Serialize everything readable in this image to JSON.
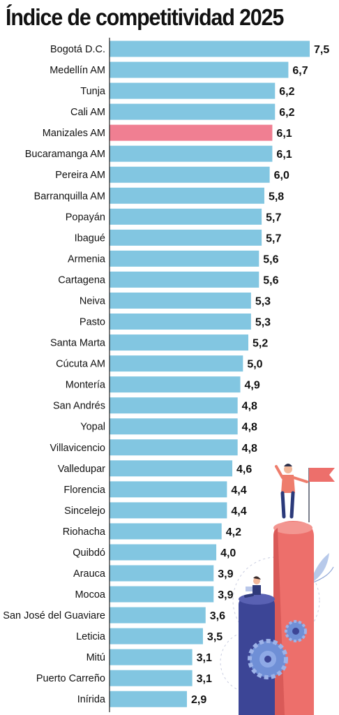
{
  "colors": {
    "bar": "#82c6e1",
    "highlight": "#f07f92",
    "axis": "#222222",
    "text": "#111111"
  },
  "chart_data": {
    "type": "bar",
    "orientation": "horizontal",
    "title": "Índice de competitividad 2025",
    "highlight_category": "Manizales AM",
    "categories": [
      "Bogotá D.C.",
      "Medellín AM",
      "Tunja",
      "Cali AM",
      "Manizales AM",
      "Bucaramanga AM",
      "Pereira AM",
      "Barranquilla AM",
      "Popayán",
      "Ibagué",
      "Armenia",
      "Cartagena",
      "Neiva",
      "Pasto",
      "Santa Marta",
      "Cúcuta AM",
      "Montería",
      "San Andrés",
      "Yopal",
      "Villavicencio",
      "Valledupar",
      "Florencia",
      "Sincelejo",
      "Riohacha",
      "Quibdó",
      "Arauca",
      "Mocoa",
      "San José del Guaviare",
      "Leticia",
      "Mitú",
      "Puerto Carreño",
      "Inírida"
    ],
    "values": [
      7.5,
      6.7,
      6.2,
      6.2,
      6.1,
      6.1,
      6.0,
      5.8,
      5.7,
      5.7,
      5.6,
      5.6,
      5.3,
      5.3,
      5.2,
      5.0,
      4.9,
      4.8,
      4.8,
      4.8,
      4.6,
      4.4,
      4.4,
      4.2,
      4.0,
      3.9,
      3.9,
      3.6,
      3.5,
      3.1,
      3.1,
      2.9
    ],
    "value_labels": [
      "7,5",
      "6,7",
      "6,2",
      "6,2",
      "6,1",
      "6,1",
      "6,0",
      "5,8",
      "5,7",
      "5,7",
      "5,6",
      "5,6",
      "5,3",
      "5,3",
      "5,2",
      "5,0",
      "4,9",
      "4,8",
      "4,8",
      "4,8",
      "4,6",
      "4,4",
      "4,4",
      "4,2",
      "4,0",
      "3,9",
      "3,9",
      "3,6",
      "3,5",
      "3,1",
      "3,1",
      "2,9"
    ],
    "xlim": [
      0,
      7.5
    ],
    "grid": false,
    "legend": "none"
  }
}
